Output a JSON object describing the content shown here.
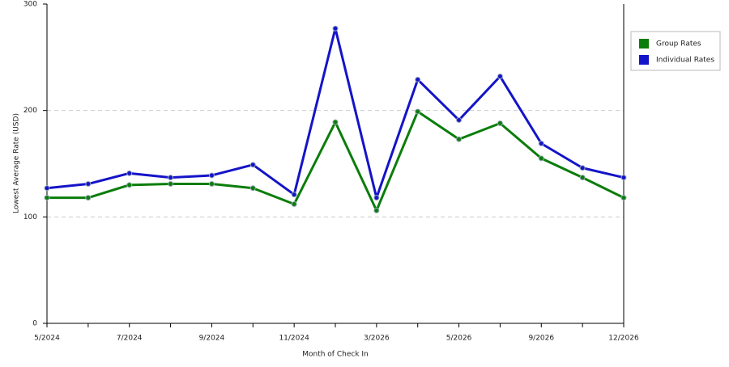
{
  "chart_data": {
    "type": "line",
    "ylabel": "Lowest Average Rate (USD)",
    "xlabel": "Month of Check In",
    "categories": [
      "5/2024",
      null,
      "7/2024",
      null,
      "9/2024",
      null,
      "11/2024",
      null,
      "3/2026",
      null,
      "5/2026",
      null,
      "9/2026",
      null,
      "12/2026"
    ],
    "series": [
      {
        "name": "Group Rates",
        "color": "#0b7d0b",
        "values": [
          118,
          118,
          130,
          131,
          131,
          127,
          112,
          189,
          106,
          199,
          173,
          188,
          155,
          137,
          118
        ]
      },
      {
        "name": "Individual Rates",
        "color": "#1414c8",
        "values": [
          127,
          131,
          141,
          137,
          139,
          149,
          121,
          277,
          118,
          229,
          191,
          232,
          169,
          146,
          137
        ]
      }
    ],
    "ylim": [
      0,
      300
    ],
    "yticks": [
      0,
      100,
      200,
      300
    ],
    "grid": true,
    "legend": "right"
  }
}
